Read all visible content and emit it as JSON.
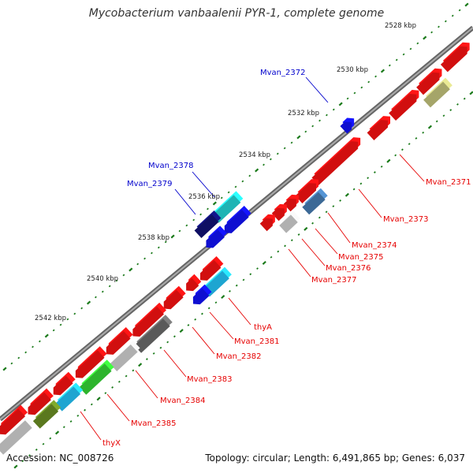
{
  "title": "Mycobacterium vanbaalenii PYR-1, complete genome",
  "accession_text": "Accession: NC_008726",
  "summary_text": "Topology: circular; Length: 6,491,865 bp; Genes: 6,037",
  "colors": {
    "backbone": "#888888",
    "red": "#ee1111",
    "blue": "#1111ee",
    "navy": "#101070",
    "cyan": "#22cccc",
    "light_blue": "#22bbee",
    "steel": "#4477aa",
    "gray_light": "#c8c8c8",
    "gray_dark": "#666666",
    "green": "#33cc33",
    "olive": "#668822",
    "khaki": "#bbbb77",
    "tick": "#1a7a1a"
  },
  "scale": {
    "ticks": [
      {
        "label": "2528 kbp"
      },
      {
        "label": "2530 kbp"
      },
      {
        "label": "2532 kbp"
      },
      {
        "label": "2534 kbp"
      },
      {
        "label": "2536 kbp"
      },
      {
        "label": "2538 kbp"
      },
      {
        "label": "2540 kbp"
      },
      {
        "label": "2542 kbp"
      }
    ]
  },
  "features": [
    {
      "label": "Mvan_2371",
      "color": "red"
    },
    {
      "label": "Mvan_2372",
      "color": "blue"
    },
    {
      "label": "Mvan_2373",
      "color": "red"
    },
    {
      "label": "Mvan_2374",
      "color": "red"
    },
    {
      "label": "Mvan_2375",
      "color": "red"
    },
    {
      "label": "Mvan_2376",
      "color": "red"
    },
    {
      "label": "Mvan_2377",
      "color": "red"
    },
    {
      "label": "Mvan_2378",
      "color": "blue"
    },
    {
      "label": "Mvan_2379",
      "color": "blue"
    },
    {
      "label": "thyA",
      "color": "red"
    },
    {
      "label": "Mvan_2381",
      "color": "red"
    },
    {
      "label": "Mvan_2382",
      "color": "red"
    },
    {
      "label": "Mvan_2383",
      "color": "red"
    },
    {
      "label": "Mvan_2384",
      "color": "red"
    },
    {
      "label": "Mvan_2385",
      "color": "red"
    },
    {
      "label": "thyX",
      "color": "red"
    }
  ]
}
